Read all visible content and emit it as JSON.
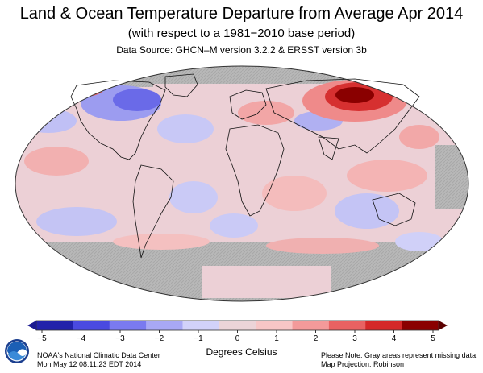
{
  "header": {
    "title": "Land & Ocean Temperature Departure from Average Apr 2014",
    "subtitle": "(with respect to a 1981−2010 base period)",
    "source": "Data Source: GHCN–M version 3.2.2 & ERSST version 3b"
  },
  "colorbar": {
    "ticks": [
      "−5",
      "−4",
      "−3",
      "−2",
      "−1",
      "0",
      "1",
      "2",
      "3",
      "4",
      "5"
    ],
    "label": "Degrees Celsius",
    "colors": [
      "#2222aa",
      "#4a4ae0",
      "#7a7af0",
      "#a8a8f5",
      "#d2d2fa",
      "#ecd4d8",
      "#f7c6c6",
      "#f39a9a",
      "#e86262",
      "#d42828",
      "#8a0000"
    ]
  },
  "footer": {
    "org": "NOAA's National Climatic Data Center",
    "timestamp": "Mon May 12 08:11:23 EDT 2014",
    "note": "Please Note: Gray areas represent missing data",
    "projection": "Map Projection: Robinson",
    "logo_text": "NOAA"
  }
}
